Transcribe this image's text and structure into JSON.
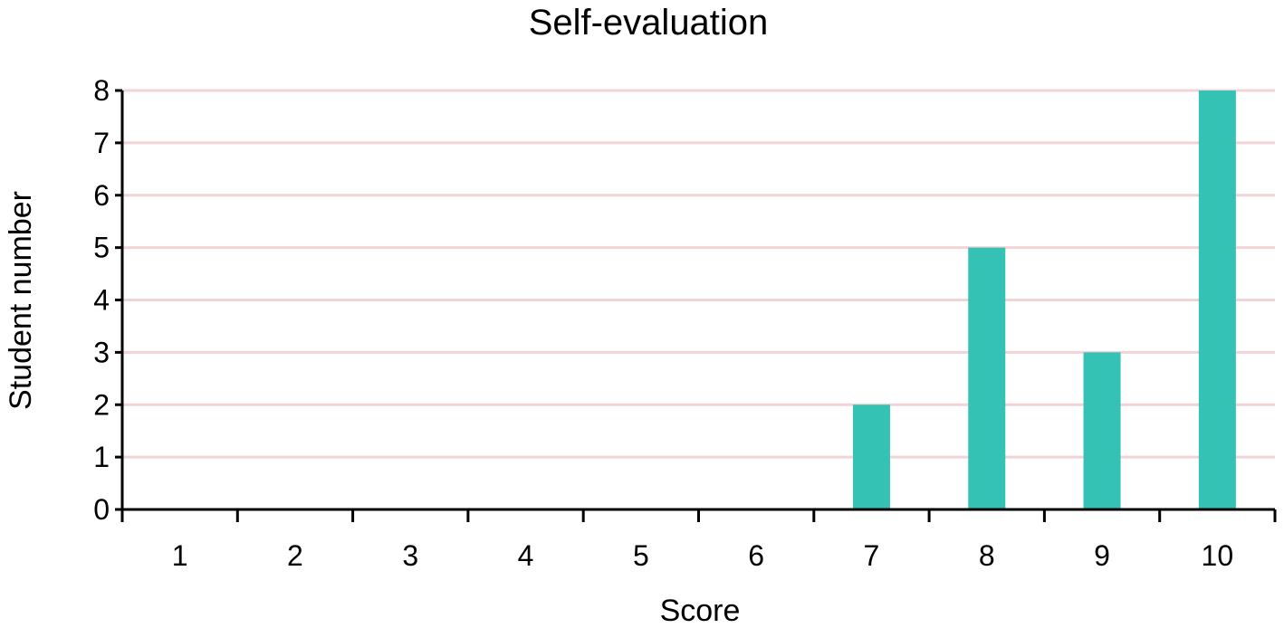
{
  "chart_data": {
    "type": "bar",
    "title": "Self-evaluation",
    "xlabel": "Score",
    "ylabel": "Student number",
    "categories": [
      "1",
      "2",
      "3",
      "4",
      "5",
      "6",
      "7",
      "8",
      "9",
      "10"
    ],
    "values": [
      0,
      0,
      0,
      0,
      0,
      0,
      2,
      5,
      3,
      8
    ],
    "ylim": [
      0,
      8
    ],
    "yticks": [
      "0",
      "1",
      "2",
      "3",
      "4",
      "5",
      "6",
      "7",
      "8"
    ],
    "grid": true,
    "legend": "none",
    "colors": {
      "bar": "#33c2b4",
      "grid": "#f2d3d6",
      "axis": "#000000"
    }
  }
}
